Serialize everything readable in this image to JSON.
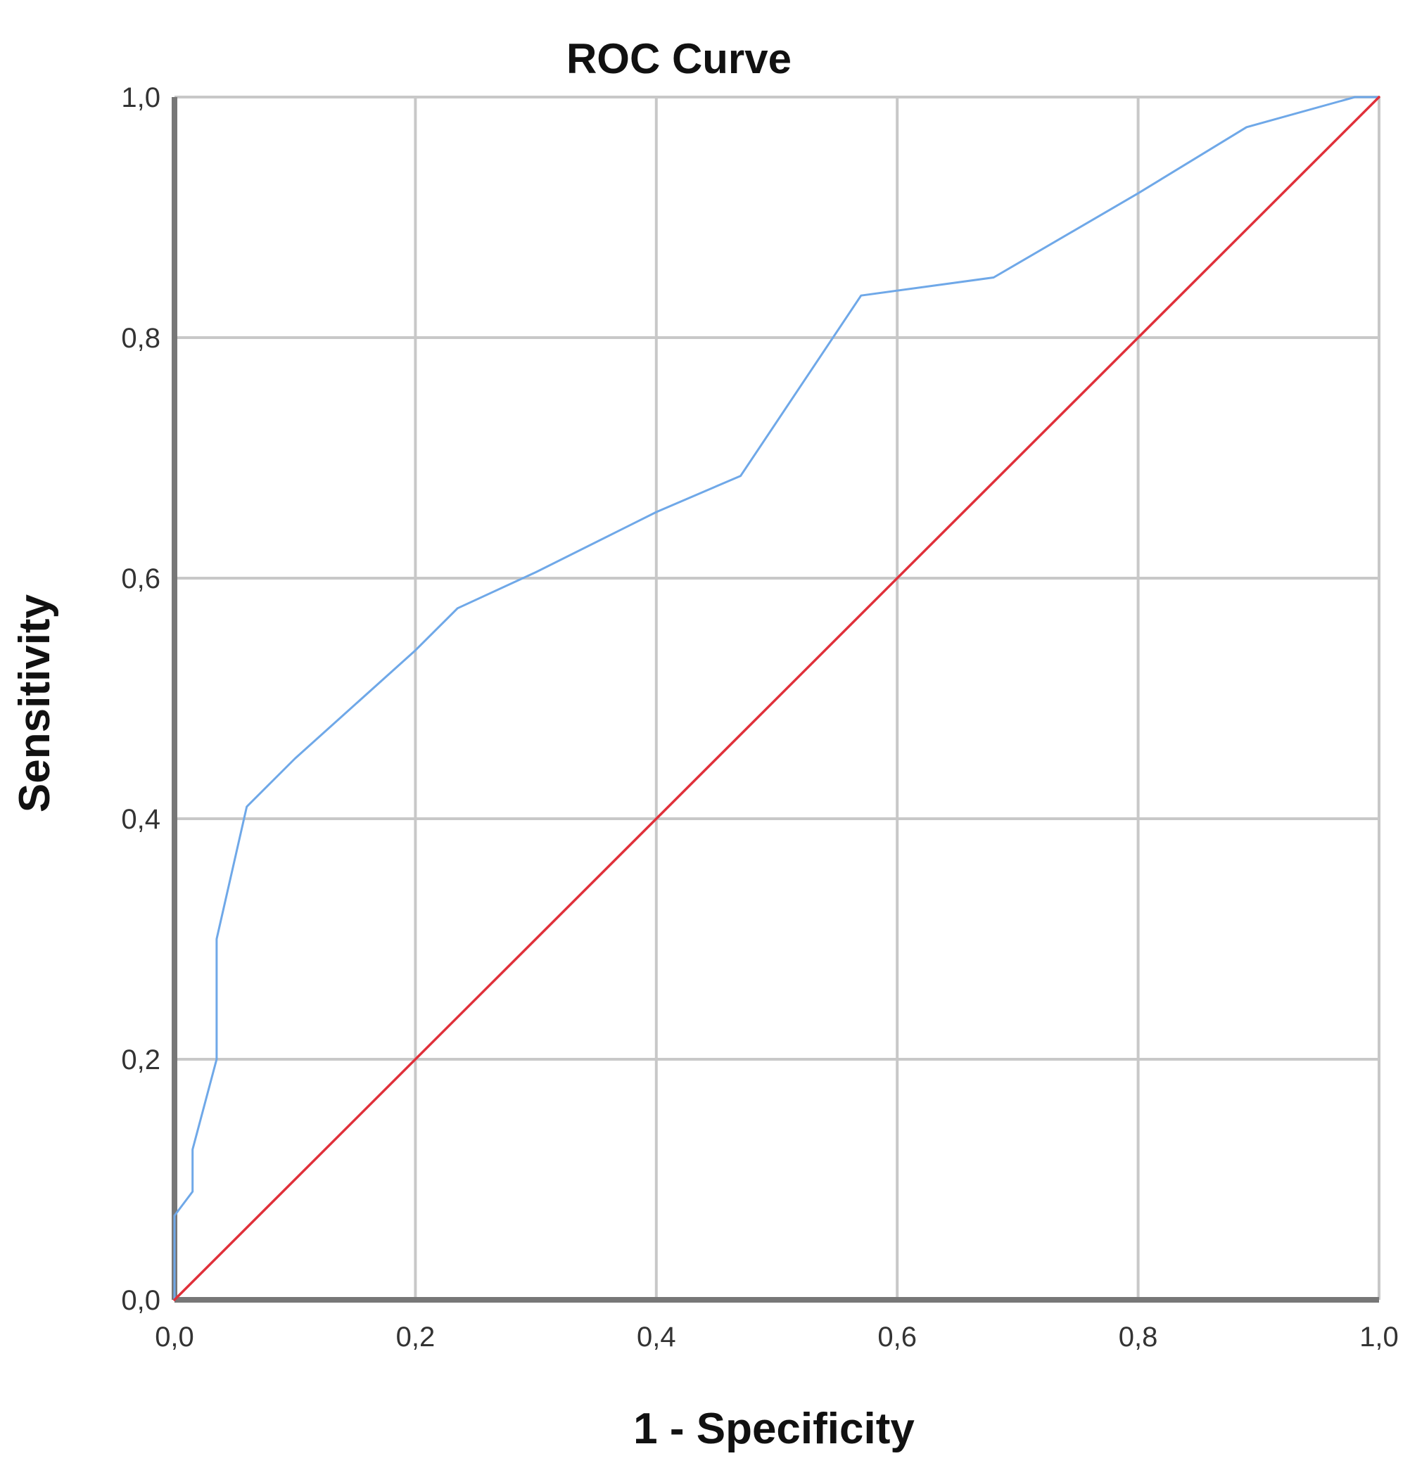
{
  "chart_data": {
    "type": "line",
    "title": "ROC Curve",
    "xlabel": "1 - Specificity",
    "ylabel": "Sensitivity",
    "xlim": [
      0,
      1
    ],
    "ylim": [
      0,
      1
    ],
    "grid": true,
    "x_ticks": [
      0,
      0.2,
      0.4,
      0.6,
      0.8,
      1
    ],
    "y_ticks": [
      0,
      0.2,
      0.4,
      0.6,
      0.8,
      1
    ],
    "x_tick_labels": [
      "0,0",
      "0,2",
      "0,4",
      "0,6",
      "0,8",
      "1,0"
    ],
    "y_tick_labels": [
      "0,0",
      "0,2",
      "0,4",
      "0,6",
      "0,8",
      "1,0"
    ],
    "series": [
      {
        "color": "#6fa8e8",
        "x": [
          0,
          0,
          0.015,
          0.015,
          0.035,
          0.035,
          0.06,
          0.1,
          0.2,
          0.235,
          0.3,
          0.4,
          0.47,
          0.57,
          0.68,
          0.8,
          0.89,
          0.98,
          1
        ],
        "y": [
          0,
          0.07,
          0.09,
          0.125,
          0.2,
          0.3,
          0.41,
          0.45,
          0.54,
          0.575,
          0.605,
          0.655,
          0.685,
          0.835,
          0.85,
          0.92,
          0.975,
          1,
          1
        ]
      },
      {
        "color": "#e0303a",
        "x": [
          0,
          1
        ],
        "y": [
          0,
          1
        ]
      }
    ]
  }
}
